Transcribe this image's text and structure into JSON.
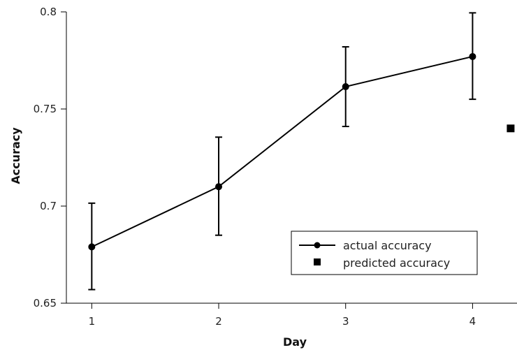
{
  "chart_data": {
    "type": "line",
    "title": "",
    "xlabel": "Day",
    "ylabel": "Accuracy",
    "x_ticks": [
      "1",
      "2",
      "3",
      "4"
    ],
    "y_ticks": [
      "0.65",
      "0.7",
      "0.75",
      "0.8"
    ],
    "xlim": [
      0.8,
      4.35
    ],
    "ylim": [
      0.65,
      0.8
    ],
    "grid": false,
    "legend_position": "lower-right",
    "series": [
      {
        "name": "actual accuracy",
        "style": "line-with-circle-markers",
        "color": "#000000",
        "x": [
          1,
          2,
          3,
          4
        ],
        "y": [
          0.679,
          0.71,
          0.7615,
          0.777
        ],
        "error_low": [
          0.657,
          0.685,
          0.741,
          0.755
        ],
        "error_high": [
          0.7015,
          0.7355,
          0.782,
          0.7995
        ]
      },
      {
        "name": "predicted accuracy",
        "style": "square-marker",
        "color": "#000000",
        "x": [
          4.3
        ],
        "y": [
          0.74
        ]
      }
    ]
  }
}
